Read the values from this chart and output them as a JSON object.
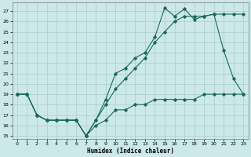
{
  "xlabel": "Humidex (Indice chaleur)",
  "bg_color": "#cce8e8",
  "grid_color": "#aacccc",
  "line_color": "#1a6958",
  "xlim": [
    -0.5,
    23.5
  ],
  "ylim": [
    14.7,
    27.8
  ],
  "yticks": [
    15,
    16,
    17,
    18,
    19,
    20,
    21,
    22,
    23,
    24,
    25,
    26,
    27
  ],
  "xticks": [
    0,
    1,
    2,
    3,
    4,
    5,
    6,
    7,
    8,
    9,
    10,
    11,
    12,
    13,
    14,
    15,
    16,
    17,
    18,
    19,
    20,
    21,
    22,
    23
  ],
  "line1_x": [
    0,
    1,
    2,
    3,
    4,
    5,
    6,
    7,
    8,
    9,
    10,
    11,
    12,
    13,
    14,
    15,
    16,
    17,
    18,
    19,
    20,
    21,
    22,
    23
  ],
  "line1_y": [
    19,
    19,
    17,
    16.5,
    16.5,
    16.5,
    16.5,
    15,
    16.5,
    18.5,
    21,
    21.5,
    22.5,
    23,
    24.5,
    27.3,
    26.5,
    27.2,
    26.2,
    26.5,
    26.7,
    23.2,
    20.5,
    19
  ],
  "line2_x": [
    0,
    1,
    2,
    3,
    4,
    5,
    6,
    7,
    8,
    9,
    10,
    11,
    12,
    13,
    14,
    15,
    16,
    17,
    18,
    19,
    20,
    21,
    22,
    23
  ],
  "line2_y": [
    19,
    19,
    17,
    16.5,
    16.5,
    16.5,
    16.5,
    15,
    16.5,
    18.0,
    19.5,
    20.5,
    21.5,
    22.5,
    24.0,
    25.0,
    26.0,
    26.5,
    26.5,
    26.5,
    26.7,
    26.7,
    26.7,
    26.7
  ],
  "line3_x": [
    0,
    1,
    2,
    3,
    4,
    5,
    6,
    7,
    8,
    9,
    10,
    11,
    12,
    13,
    14,
    15,
    16,
    17,
    18,
    19,
    20,
    21,
    22,
    23
  ],
  "line3_y": [
    19,
    19,
    17,
    16.5,
    16.5,
    16.5,
    16.5,
    15,
    16,
    16.5,
    17.5,
    17.5,
    18,
    18,
    18.5,
    18.5,
    18.5,
    18.5,
    18.5,
    19,
    19,
    19,
    19,
    19
  ]
}
